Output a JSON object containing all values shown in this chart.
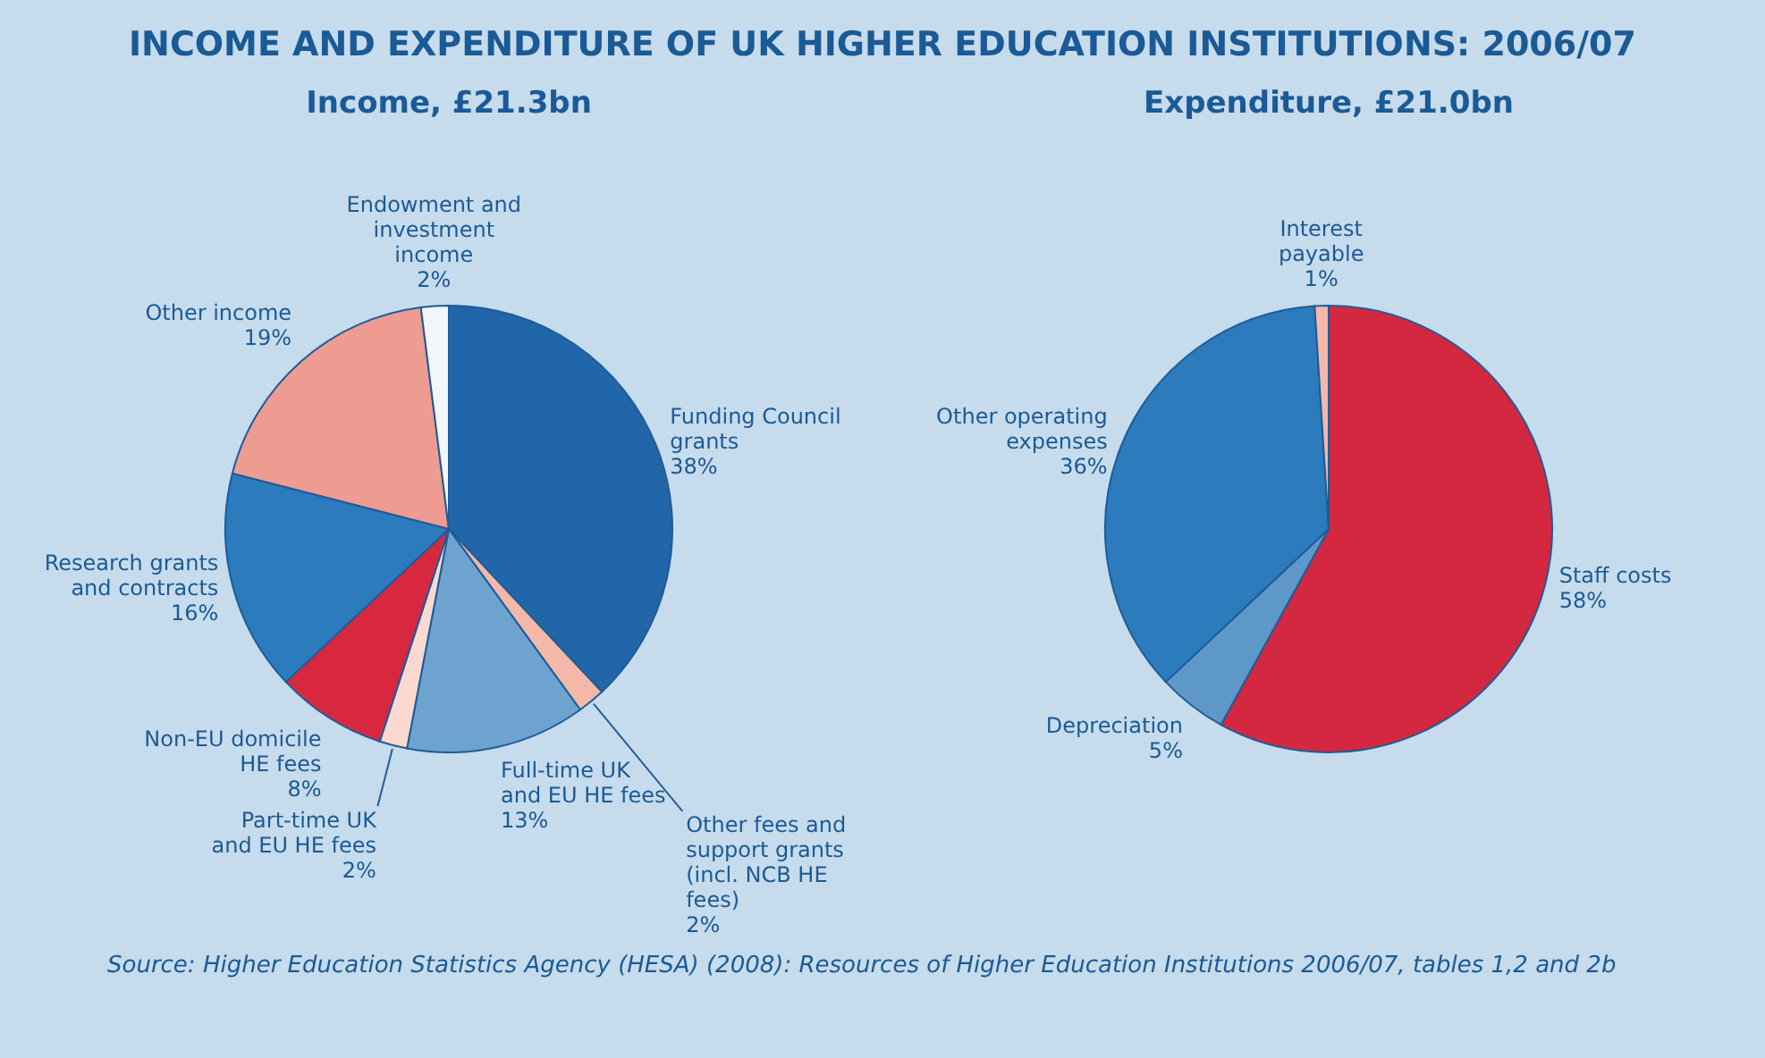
{
  "chart_data": [
    {
      "type": "pie",
      "title": "Income, £21.3bn",
      "annotations": [
        "INCOME AND EXPENDITURE OF UK HIGHER EDUCATION INSTITUTIONS: 2006/07"
      ],
      "categories": [
        "Funding Council grants",
        "Other fees and support grants (incl. NCB HE fees)",
        "Full-time UK and EU HE fees",
        "Part-time UK and EU HE fees",
        "Non-EU domicile HE fees",
        "Research grants and contracts",
        "Other income",
        "Endowment and investment income"
      ],
      "values": [
        38,
        2,
        13,
        2,
        8,
        16,
        19,
        2
      ],
      "value_labels": [
        "38%",
        "2%",
        "13%",
        "2%",
        "8%",
        "16%",
        "19%",
        "2%"
      ],
      "colors": [
        "#2166a8",
        "#f4b8a8",
        "#6fa3cf",
        "#fbd9d0",
        "#d7283f",
        "#2b7bbd",
        "#ee9b92",
        "#f3f6fa"
      ],
      "legend": false
    },
    {
      "type": "pie",
      "title": "Expenditure, £21.0bn",
      "annotations": [
        "Source: Higher Education Statistics Agency (HESA) (2008): Resources of Higher Education Institutions 2006/07, tables 1,2 and 2b"
      ],
      "categories": [
        "Staff costs",
        "Depreciation",
        "Other operating expenses",
        "Interest payable"
      ],
      "values": [
        58,
        5,
        36,
        1
      ],
      "value_labels": [
        "58%",
        "5%",
        "36%",
        "1%"
      ],
      "colors": [
        "#d3283f",
        "#5d98c8",
        "#2b7bbd",
        "#f4b8a8"
      ],
      "legend": false
    }
  ]
}
